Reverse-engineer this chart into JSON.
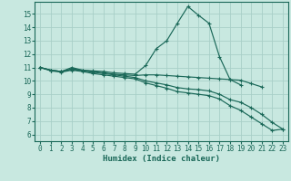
{
  "xlabel": "Humidex (Indice chaleur)",
  "bg_color": "#c8e8e0",
  "grid_color": "#a8cfc8",
  "line_color": "#1a6858",
  "xlim": [
    -0.5,
    23.5
  ],
  "ylim": [
    5.5,
    15.9
  ],
  "yticks": [
    6,
    7,
    8,
    9,
    10,
    11,
    12,
    13,
    14,
    15
  ],
  "xticks": [
    0,
    1,
    2,
    3,
    4,
    5,
    6,
    7,
    8,
    9,
    10,
    11,
    12,
    13,
    14,
    15,
    16,
    17,
    18,
    19,
    20,
    21,
    22,
    23
  ],
  "lines": [
    {
      "x": [
        0,
        1,
        2,
        3,
        4,
        5,
        6,
        7,
        8,
        9,
        10,
        11,
        12,
        13,
        14,
        15,
        16,
        17,
        18,
        19,
        20,
        21,
        22,
        23
      ],
      "y": [
        11.0,
        10.8,
        10.7,
        10.9,
        10.8,
        10.75,
        10.7,
        10.6,
        10.55,
        10.5,
        11.15,
        12.4,
        13.0,
        14.3,
        15.55,
        14.9,
        14.3,
        11.8,
        10.1,
        9.7,
        null,
        null,
        null,
        null
      ]
    },
    {
      "x": [
        0,
        1,
        2,
        3,
        4,
        5,
        6,
        7,
        8,
        9,
        10,
        11,
        12,
        13,
        14,
        15,
        16,
        17,
        18,
        19,
        20,
        21,
        22,
        23
      ],
      "y": [
        11.0,
        10.8,
        10.7,
        11.0,
        10.8,
        10.7,
        10.6,
        10.5,
        10.45,
        10.4,
        10.45,
        10.45,
        10.4,
        10.35,
        10.3,
        10.25,
        10.2,
        10.15,
        10.1,
        10.05,
        9.8,
        9.55,
        null,
        null
      ]
    },
    {
      "x": [
        0,
        1,
        2,
        3,
        4,
        5,
        6,
        7,
        8,
        9,
        10,
        11,
        12,
        13,
        14,
        15,
        16,
        17,
        18,
        19,
        20,
        21,
        22,
        23
      ],
      "y": [
        11.0,
        10.8,
        10.7,
        10.85,
        10.75,
        10.65,
        10.55,
        10.45,
        10.35,
        10.25,
        10.0,
        9.85,
        9.7,
        9.5,
        9.4,
        9.35,
        9.25,
        9.0,
        8.6,
        8.4,
        8.0,
        7.5,
        6.9,
        6.4
      ]
    },
    {
      "x": [
        0,
        1,
        2,
        3,
        4,
        5,
        6,
        7,
        8,
        9,
        10,
        11,
        12,
        13,
        14,
        15,
        16,
        17,
        18,
        19,
        20,
        21,
        22,
        23
      ],
      "y": [
        11.0,
        10.75,
        10.65,
        10.8,
        10.7,
        10.55,
        10.45,
        10.35,
        10.25,
        10.15,
        9.85,
        9.65,
        9.45,
        9.2,
        9.1,
        9.0,
        8.9,
        8.65,
        8.15,
        7.8,
        7.3,
        6.8,
        6.3,
        6.4
      ]
    }
  ]
}
